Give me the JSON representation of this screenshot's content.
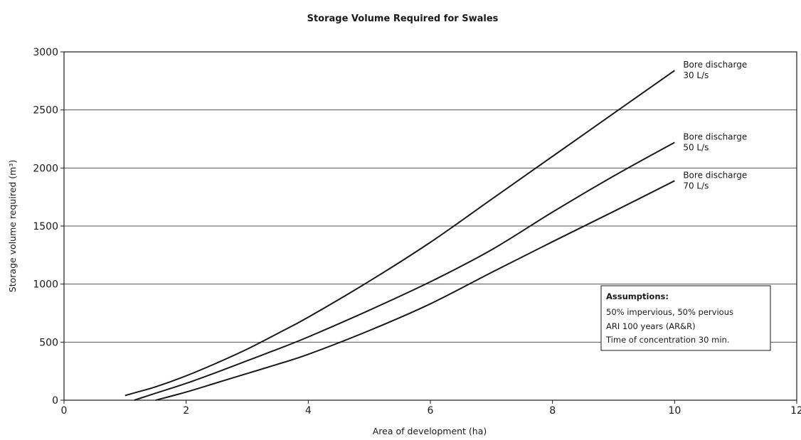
{
  "chart_data": {
    "type": "line",
    "title": "Storage Volume Required for Swales",
    "xlabel": "Area of development (ha)",
    "ylabel": "Storage volume required (m³)",
    "xlim": [
      0,
      12
    ],
    "ylim": [
      0,
      3000
    ],
    "xticks": [
      0,
      2,
      4,
      6,
      8,
      10,
      12
    ],
    "yticks": [
      0,
      500,
      1000,
      1500,
      2000,
      2500,
      3000
    ],
    "grid": "horizontal",
    "series": [
      {
        "name_lines": [
          "Bore discharge",
          "30 L/s"
        ],
        "x": [
          1.0,
          1.2,
          1.5,
          2.0,
          2.5,
          3.0,
          3.5,
          4.0,
          5.0,
          6.0,
          7.0,
          8.0,
          9.0,
          10.0
        ],
        "y": [
          40,
          70,
          115,
          210,
          320,
          440,
          575,
          715,
          1025,
          1360,
          1730,
          2100,
          2470,
          2840
        ]
      },
      {
        "name_lines": [
          "Bore discharge",
          "50 L/s"
        ],
        "x": [
          1.15,
          1.5,
          2.0,
          2.5,
          3.0,
          3.5,
          4.0,
          5.0,
          6.0,
          7.0,
          8.0,
          9.0,
          10.0
        ],
        "y": [
          0,
          60,
          145,
          240,
          340,
          440,
          545,
          775,
          1020,
          1295,
          1620,
          1930,
          2220
        ]
      },
      {
        "name_lines": [
          "Bore discharge",
          "70 L/s"
        ],
        "x": [
          1.5,
          2.0,
          2.5,
          3.0,
          3.5,
          4.0,
          5.0,
          6.0,
          7.0,
          8.0,
          9.0,
          10.0
        ],
        "y": [
          0,
          70,
          150,
          230,
          310,
          395,
          600,
          830,
          1100,
          1365,
          1625,
          1890
        ]
      }
    ],
    "annotation": {
      "heading": "Assumptions:",
      "lines": [
        "50% impervious, 50% pervious",
        "ARI 100 years (AR&R)",
        "Time of concentration 30 min."
      ]
    }
  }
}
